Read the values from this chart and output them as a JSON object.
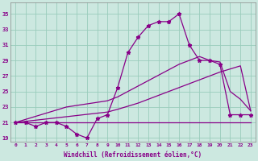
{
  "title": "",
  "xlabel": "Windchill (Refroidissement éolien,°C)",
  "ylabel": "",
  "bg_color": "#cce8e0",
  "line_color": "#880088",
  "xlim": [
    -0.5,
    23.5
  ],
  "ylim": [
    18.5,
    36.5
  ],
  "xticks": [
    0,
    1,
    2,
    3,
    4,
    5,
    6,
    7,
    8,
    9,
    10,
    11,
    12,
    13,
    14,
    15,
    16,
    17,
    18,
    19,
    20,
    21,
    22,
    23
  ],
  "yticks": [
    19,
    21,
    23,
    25,
    27,
    29,
    31,
    33,
    35
  ],
  "grid_color": "#99ccbb",
  "hours": [
    0,
    1,
    2,
    3,
    4,
    5,
    6,
    7,
    8,
    9,
    10,
    11,
    12,
    13,
    14,
    15,
    16,
    17,
    18,
    19,
    20,
    21,
    22,
    23
  ],
  "temp_main": [
    21,
    21,
    20.5,
    21,
    21,
    20.5,
    19.5,
    19,
    21.5,
    22,
    25.5,
    30,
    32,
    33.5,
    34,
    34,
    35,
    31,
    29,
    29,
    28.5,
    22,
    22,
    22
  ],
  "temp_line1": [
    21,
    21,
    21,
    21,
    21,
    21,
    21,
    21,
    21,
    21,
    21,
    21,
    21,
    21,
    21,
    21,
    21,
    21,
    21,
    21,
    21,
    21,
    21,
    21
  ],
  "temp_line2": [
    21,
    21.15,
    21.3,
    21.45,
    21.6,
    21.75,
    21.9,
    22.05,
    22.2,
    22.35,
    22.7,
    23.1,
    23.5,
    24,
    24.5,
    25,
    25.5,
    26,
    26.5,
    27,
    27.5,
    27.9,
    28.3,
    22.5
  ],
  "temp_line3": [
    21,
    21.4,
    21.8,
    22.2,
    22.6,
    23,
    23.2,
    23.4,
    23.6,
    23.8,
    24.3,
    25,
    25.7,
    26.4,
    27.1,
    27.8,
    28.5,
    29,
    29.5,
    29,
    28.8,
    25,
    24,
    22.5
  ]
}
